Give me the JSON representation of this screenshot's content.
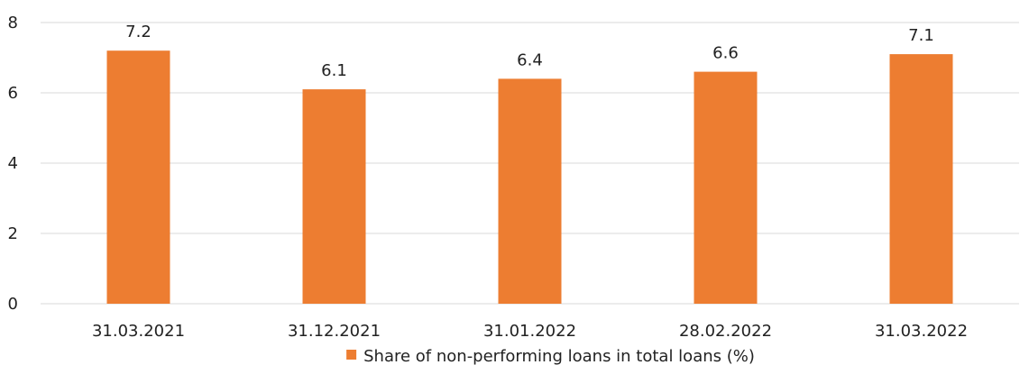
{
  "chart_data": {
    "type": "bar",
    "categories": [
      "31.03.2021",
      "31.12.2021",
      "31.01.2022",
      "28.02.2022",
      "31.03.2022"
    ],
    "series": [
      {
        "name": "Share of non-performing loans in total loans (%)",
        "values": [
          7.2,
          6.1,
          6.4,
          6.6,
          7.1
        ],
        "color": "#ED7D31"
      }
    ],
    "data_labels": [
      "7.2",
      "6.1",
      "6.4",
      "6.6",
      "7.1"
    ],
    "ylim": [
      0,
      8
    ],
    "yticks": [
      0,
      2,
      4,
      6,
      8
    ],
    "ytick_labels": [
      "0",
      "2",
      "4",
      "6",
      "8"
    ],
    "grid": true,
    "grid_color": "#D9D9D9",
    "legend_position": "bottom"
  }
}
